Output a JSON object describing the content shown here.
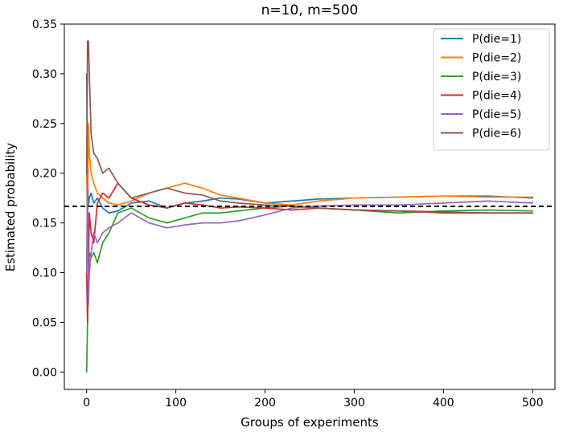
{
  "chart_data": {
    "type": "line",
    "title": "n=10, m=500",
    "xlabel": "Groups of experiments",
    "ylabel": "Estimated probability",
    "xlim": [
      -25,
      525
    ],
    "ylim": [
      -0.0175,
      0.35
    ],
    "xticks": [
      0,
      100,
      200,
      300,
      400,
      500
    ],
    "yticks": [
      0.0,
      0.05,
      0.1,
      0.15,
      0.2,
      0.25,
      0.3,
      0.35
    ],
    "xtick_labels": [
      "0",
      "100",
      "200",
      "300",
      "400",
      "500"
    ],
    "ytick_labels": [
      "0.00",
      "0.05",
      "0.10",
      "0.15",
      "0.20",
      "0.25",
      "0.30",
      "0.35"
    ],
    "grid": false,
    "legend_position": "top-right",
    "reference_line": {
      "y": 0.1667,
      "style": "dashed",
      "color": "#000000"
    },
    "series": [
      {
        "name": "P(die=1)",
        "color": "#1f77b4",
        "x": [
          0,
          1,
          2,
          3,
          5,
          8,
          12,
          18,
          25,
          35,
          50,
          70,
          90,
          110,
          130,
          150,
          170,
          200,
          230,
          260,
          300,
          350,
          400,
          450,
          500
        ],
        "y": [
          0.3,
          0.2,
          0.167,
          0.175,
          0.18,
          0.17,
          0.175,
          0.165,
          0.16,
          0.162,
          0.17,
          0.172,
          0.165,
          0.17,
          0.172,
          0.175,
          0.174,
          0.17,
          0.172,
          0.174,
          0.175,
          0.176,
          0.177,
          0.177,
          0.175
        ]
      },
      {
        "name": "P(die=2)",
        "color": "#ff7f0e",
        "x": [
          0,
          1,
          2,
          3,
          5,
          8,
          12,
          18,
          25,
          35,
          50,
          70,
          90,
          110,
          130,
          150,
          170,
          200,
          230,
          260,
          300,
          350,
          400,
          450,
          500
        ],
        "y": [
          0.2,
          0.15,
          0.25,
          0.22,
          0.2,
          0.19,
          0.18,
          0.175,
          0.17,
          0.168,
          0.172,
          0.18,
          0.185,
          0.19,
          0.185,
          0.178,
          0.175,
          0.17,
          0.168,
          0.172,
          0.175,
          0.176,
          0.177,
          0.176,
          0.176
        ]
      },
      {
        "name": "P(die=3)",
        "color": "#2ca02c",
        "x": [
          0,
          1,
          2,
          3,
          5,
          8,
          12,
          18,
          25,
          35,
          50,
          70,
          90,
          110,
          130,
          150,
          170,
          200,
          230,
          260,
          300,
          350,
          400,
          450,
          500
        ],
        "y": [
          0.0,
          0.05,
          0.1,
          0.12,
          0.115,
          0.12,
          0.11,
          0.13,
          0.14,
          0.16,
          0.165,
          0.155,
          0.15,
          0.155,
          0.16,
          0.16,
          0.162,
          0.165,
          0.167,
          0.165,
          0.163,
          0.16,
          0.162,
          0.163,
          0.162
        ]
      },
      {
        "name": "P(die=4)",
        "color": "#d62728",
        "x": [
          0,
          1,
          2,
          3,
          5,
          8,
          12,
          18,
          25,
          35,
          50,
          70,
          90,
          110,
          130,
          150,
          170,
          200,
          230,
          260,
          300,
          350,
          400,
          450,
          500
        ],
        "y": [
          0.1,
          0.05,
          0.1,
          0.16,
          0.14,
          0.13,
          0.17,
          0.18,
          0.175,
          0.19,
          0.175,
          0.168,
          0.165,
          0.17,
          0.168,
          0.165,
          0.166,
          0.165,
          0.163,
          0.165,
          0.163,
          0.162,
          0.161,
          0.16,
          0.16
        ]
      },
      {
        "name": "P(die=5)",
        "color": "#9467bd",
        "x": [
          0,
          1,
          2,
          3,
          5,
          8,
          12,
          18,
          25,
          35,
          50,
          70,
          90,
          110,
          130,
          150,
          170,
          200,
          230,
          260,
          300,
          350,
          400,
          450,
          500
        ],
        "y": [
          0.1,
          0.2,
          0.067,
          0.1,
          0.12,
          0.14,
          0.13,
          0.14,
          0.145,
          0.15,
          0.16,
          0.15,
          0.145,
          0.148,
          0.15,
          0.15,
          0.152,
          0.158,
          0.165,
          0.167,
          0.168,
          0.168,
          0.17,
          0.172,
          0.17
        ]
      },
      {
        "name": "P(die=6)",
        "color": "#8c564b",
        "x": [
          0,
          1,
          2,
          3,
          5,
          8,
          12,
          18,
          25,
          35,
          50,
          70,
          90,
          110,
          130,
          150,
          170,
          200,
          230,
          260,
          300,
          350,
          400,
          450,
          500
        ],
        "y": [
          0.2,
          0.333,
          0.333,
          0.3,
          0.24,
          0.22,
          0.215,
          0.2,
          0.205,
          0.19,
          0.175,
          0.18,
          0.185,
          0.18,
          0.178,
          0.172,
          0.17,
          0.168,
          0.167,
          0.165,
          0.163,
          0.162,
          0.16,
          0.16,
          0.16
        ]
      }
    ]
  }
}
